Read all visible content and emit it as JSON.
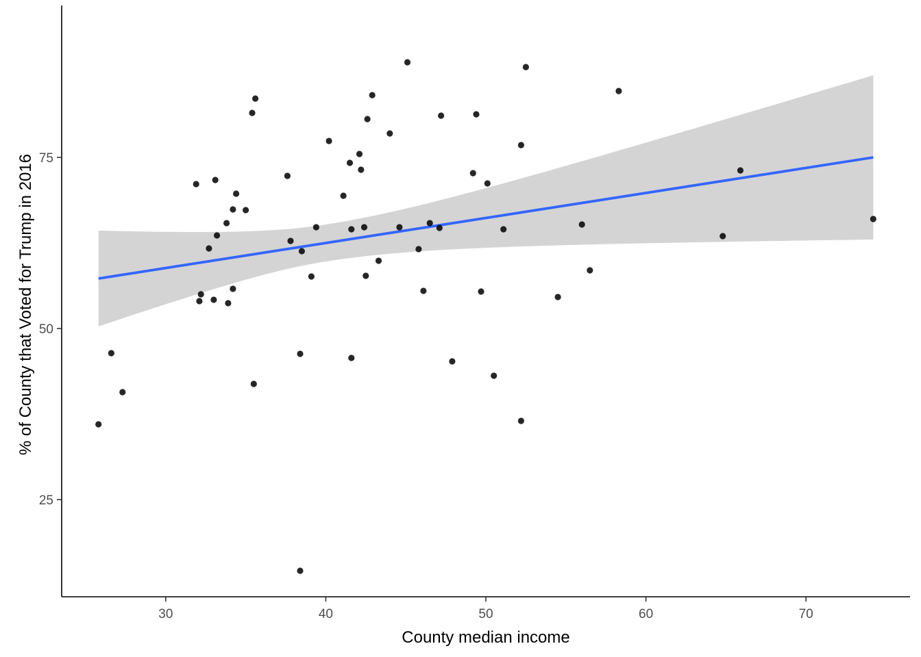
{
  "chart_data": {
    "type": "scatter",
    "title": "",
    "xlabel": "County median income",
    "ylabel": "% of County that Voted for Trump in 2016",
    "xlim": [
      23.5,
      76.5
    ],
    "ylim": [
      10.8,
      97.2
    ],
    "x_ticks": [
      30,
      40,
      50,
      60,
      70
    ],
    "y_ticks": [
      25,
      50,
      75
    ],
    "grid": false,
    "point_color": "#000000",
    "points": [
      {
        "x": 25.8,
        "y": 36.0
      },
      {
        "x": 26.6,
        "y": 46.4
      },
      {
        "x": 27.3,
        "y": 40.7
      },
      {
        "x": 31.9,
        "y": 71.1
      },
      {
        "x": 32.1,
        "y": 54.0
      },
      {
        "x": 32.2,
        "y": 55.0
      },
      {
        "x": 32.7,
        "y": 61.7
      },
      {
        "x": 33.0,
        "y": 54.2
      },
      {
        "x": 33.1,
        "y": 71.7
      },
      {
        "x": 33.2,
        "y": 63.6
      },
      {
        "x": 33.8,
        "y": 65.4
      },
      {
        "x": 33.9,
        "y": 53.7
      },
      {
        "x": 34.2,
        "y": 67.4
      },
      {
        "x": 34.2,
        "y": 55.8
      },
      {
        "x": 34.4,
        "y": 69.7
      },
      {
        "x": 35.0,
        "y": 67.3
      },
      {
        "x": 35.4,
        "y": 81.5
      },
      {
        "x": 35.5,
        "y": 41.9
      },
      {
        "x": 35.6,
        "y": 83.6
      },
      {
        "x": 37.6,
        "y": 72.3
      },
      {
        "x": 37.8,
        "y": 62.8
      },
      {
        "x": 38.4,
        "y": 46.3
      },
      {
        "x": 38.4,
        "y": 14.6
      },
      {
        "x": 38.5,
        "y": 61.3
      },
      {
        "x": 39.1,
        "y": 57.6
      },
      {
        "x": 39.4,
        "y": 64.8
      },
      {
        "x": 40.2,
        "y": 77.4
      },
      {
        "x": 41.1,
        "y": 69.4
      },
      {
        "x": 41.5,
        "y": 74.2
      },
      {
        "x": 41.6,
        "y": 64.5
      },
      {
        "x": 41.6,
        "y": 45.7
      },
      {
        "x": 42.1,
        "y": 75.5
      },
      {
        "x": 42.2,
        "y": 73.2
      },
      {
        "x": 42.4,
        "y": 64.8
      },
      {
        "x": 42.5,
        "y": 57.7
      },
      {
        "x": 42.6,
        "y": 80.6
      },
      {
        "x": 42.9,
        "y": 84.1
      },
      {
        "x": 43.3,
        "y": 59.9
      },
      {
        "x": 44.0,
        "y": 78.5
      },
      {
        "x": 44.6,
        "y": 64.8
      },
      {
        "x": 45.1,
        "y": 88.9
      },
      {
        "x": 45.8,
        "y": 61.6
      },
      {
        "x": 46.1,
        "y": 55.5
      },
      {
        "x": 46.5,
        "y": 65.4
      },
      {
        "x": 47.1,
        "y": 64.7
      },
      {
        "x": 47.2,
        "y": 81.1
      },
      {
        "x": 47.9,
        "y": 45.2
      },
      {
        "x": 49.2,
        "y": 72.7
      },
      {
        "x": 49.4,
        "y": 81.3
      },
      {
        "x": 49.7,
        "y": 55.4
      },
      {
        "x": 50.1,
        "y": 71.2
      },
      {
        "x": 50.5,
        "y": 43.1
      },
      {
        "x": 51.1,
        "y": 64.5
      },
      {
        "x": 52.2,
        "y": 76.8
      },
      {
        "x": 52.2,
        "y": 36.5
      },
      {
        "x": 52.5,
        "y": 88.2
      },
      {
        "x": 54.5,
        "y": 54.6
      },
      {
        "x": 56.0,
        "y": 65.2
      },
      {
        "x": 56.5,
        "y": 58.5
      },
      {
        "x": 58.3,
        "y": 84.7
      },
      {
        "x": 64.8,
        "y": 63.5
      },
      {
        "x": 65.9,
        "y": 73.1
      },
      {
        "x": 74.2,
        "y": 66.0
      }
    ],
    "fit": {
      "method": "linear",
      "color": "#3366ff",
      "band_color": "#d4d4d4",
      "x": [
        25.8,
        74.2
      ],
      "y": [
        57.3,
        75.0
      ],
      "ci_lower": [
        50.3,
        63.0
      ],
      "ci_upper": [
        64.3,
        87.0
      ],
      "ci_narrowest_x": 40.0,
      "ci_narrowest_half_width": 2.7
    }
  }
}
